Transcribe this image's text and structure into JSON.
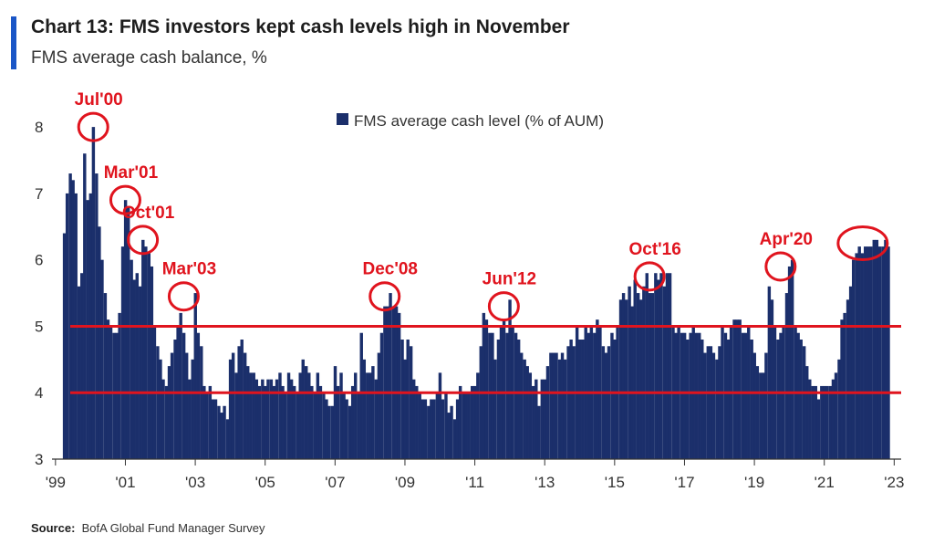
{
  "header": {
    "title": "Chart 13: FMS investors kept cash levels high in November",
    "subtitle": "FMS average cash balance, %"
  },
  "source": {
    "label": "Source:",
    "text": "BofA Global Fund Manager Survey"
  },
  "colors": {
    "bar": "#1b2f6b",
    "accent": "#1a56c7",
    "annotation": "#e0141e",
    "axis": "#333333"
  },
  "chart_data": {
    "type": "bar",
    "title": "",
    "xlabel": "",
    "ylabel": "",
    "legend": {
      "position": "top-center",
      "entries": [
        "FMS average cash level (% of AUM)"
      ]
    },
    "series": [
      {
        "name": "FMS average cash level (% of AUM)",
        "color": "#1b2f6b",
        "x": [
          1999.25,
          1999.33,
          1999.42,
          1999.5,
          1999.58,
          1999.67,
          1999.75,
          1999.83,
          1999.92,
          2000.0,
          2000.08,
          2000.17,
          2000.25,
          2000.33,
          2000.42,
          2000.5,
          2000.58,
          2000.67,
          2000.75,
          2000.83,
          2000.92,
          2001.0,
          2001.08,
          2001.17,
          2001.25,
          2001.33,
          2001.42,
          2001.5,
          2001.58,
          2001.67,
          2001.75,
          2001.83,
          2001.92,
          2002.0,
          2002.08,
          2002.17,
          2002.25,
          2002.33,
          2002.42,
          2002.5,
          2002.58,
          2002.67,
          2002.75,
          2002.83,
          2002.92,
          2003.0,
          2003.08,
          2003.17,
          2003.25,
          2003.33,
          2003.42,
          2003.5,
          2003.58,
          2003.67,
          2003.75,
          2003.83,
          2003.92,
          2004.0,
          2004.08,
          2004.17,
          2004.25,
          2004.33,
          2004.42,
          2004.5,
          2004.58,
          2004.67,
          2004.75,
          2004.83,
          2004.92,
          2005.0,
          2005.08,
          2005.17,
          2005.25,
          2005.33,
          2005.42,
          2005.5,
          2005.58,
          2005.67,
          2005.75,
          2005.83,
          2005.92,
          2006.0,
          2006.08,
          2006.17,
          2006.25,
          2006.33,
          2006.42,
          2006.5,
          2006.58,
          2006.67,
          2006.75,
          2006.83,
          2006.92,
          2007.0,
          2007.08,
          2007.17,
          2007.25,
          2007.33,
          2007.42,
          2007.5,
          2007.58,
          2007.67,
          2007.75,
          2007.83,
          2007.92,
          2008.0,
          2008.08,
          2008.17,
          2008.25,
          2008.33,
          2008.42,
          2008.5,
          2008.58,
          2008.67,
          2008.75,
          2008.83,
          2008.92,
          2009.0,
          2009.08,
          2009.17,
          2009.25,
          2009.33,
          2009.42,
          2009.5,
          2009.58,
          2009.67,
          2009.75,
          2009.83,
          2009.92,
          2010.0,
          2010.08,
          2010.17,
          2010.25,
          2010.33,
          2010.42,
          2010.5,
          2010.58,
          2010.67,
          2010.75,
          2010.83,
          2010.92,
          2011.0,
          2011.08,
          2011.17,
          2011.25,
          2011.33,
          2011.42,
          2011.5,
          2011.58,
          2011.67,
          2011.75,
          2011.83,
          2011.92,
          2012.0,
          2012.08,
          2012.17,
          2012.25,
          2012.33,
          2012.42,
          2012.5,
          2012.58,
          2012.67,
          2012.75,
          2012.83,
          2012.92,
          2013.0,
          2013.08,
          2013.17,
          2013.25,
          2013.33,
          2013.42,
          2013.5,
          2013.58,
          2013.67,
          2013.75,
          2013.83,
          2013.92,
          2014.0,
          2014.08,
          2014.17,
          2014.25,
          2014.33,
          2014.42,
          2014.5,
          2014.58,
          2014.67,
          2014.75,
          2014.83,
          2014.92,
          2015.0,
          2015.08,
          2015.17,
          2015.25,
          2015.33,
          2015.42,
          2015.5,
          2015.58,
          2015.67,
          2015.75,
          2015.83,
          2015.92,
          2016.0,
          2016.08,
          2016.17,
          2016.25,
          2016.33,
          2016.42,
          2016.5,
          2016.58,
          2016.67,
          2016.75,
          2016.83,
          2016.92,
          2017.0,
          2017.08,
          2017.17,
          2017.25,
          2017.33,
          2017.42,
          2017.5,
          2017.58,
          2017.67,
          2017.75,
          2017.83,
          2017.92,
          2018.0,
          2018.08,
          2018.17,
          2018.25,
          2018.33,
          2018.42,
          2018.5,
          2018.58,
          2018.67,
          2018.75,
          2018.83,
          2018.92,
          2019.0,
          2019.08,
          2019.17,
          2019.25,
          2019.33,
          2019.42,
          2019.5,
          2019.58,
          2019.67,
          2019.75,
          2019.83,
          2019.92,
          2020.0,
          2020.08,
          2020.17,
          2020.25,
          2020.33,
          2020.42,
          2020.5,
          2020.58,
          2020.67,
          2020.75,
          2020.83,
          2020.92,
          2021.0,
          2021.08,
          2021.17,
          2021.25,
          2021.33,
          2021.42,
          2021.5,
          2021.58,
          2021.67,
          2021.75,
          2021.83,
          2021.92,
          2022.0,
          2022.08,
          2022.17,
          2022.25,
          2022.33,
          2022.42,
          2022.5,
          2022.58,
          2022.67,
          2022.75,
          2022.83
        ],
        "values": [
          6.4,
          7.0,
          7.3,
          7.2,
          7.0,
          5.6,
          5.8,
          7.6,
          6.9,
          7.0,
          8.0,
          7.3,
          6.5,
          6.0,
          5.5,
          5.1,
          5.0,
          4.9,
          4.9,
          5.2,
          6.2,
          6.9,
          6.8,
          6.0,
          5.7,
          5.8,
          5.6,
          6.3,
          6.2,
          6.1,
          5.9,
          5.0,
          4.7,
          4.5,
          4.2,
          4.1,
          4.4,
          4.6,
          4.8,
          5.0,
          5.2,
          4.9,
          4.6,
          4.2,
          4.5,
          5.5,
          4.9,
          4.7,
          4.1,
          4.0,
          4.1,
          3.9,
          3.9,
          3.8,
          3.7,
          3.8,
          3.6,
          4.5,
          4.6,
          4.3,
          4.7,
          4.8,
          4.6,
          4.4,
          4.3,
          4.3,
          4.2,
          4.1,
          4.2,
          4.1,
          4.2,
          4.2,
          4.1,
          4.2,
          4.3,
          4.1,
          4.0,
          4.3,
          4.2,
          4.1,
          4.0,
          4.3,
          4.5,
          4.4,
          4.3,
          4.1,
          4.0,
          4.3,
          4.1,
          4.0,
          3.9,
          3.8,
          3.8,
          4.4,
          4.1,
          4.3,
          4.0,
          3.9,
          3.8,
          4.1,
          4.3,
          4.0,
          4.9,
          4.5,
          4.3,
          4.3,
          4.4,
          4.2,
          4.6,
          4.9,
          5.3,
          5.3,
          5.5,
          5.3,
          5.3,
          5.2,
          4.8,
          4.5,
          4.8,
          4.7,
          4.2,
          4.1,
          4.0,
          3.9,
          3.9,
          3.8,
          3.9,
          3.9,
          4.0,
          4.3,
          3.9,
          4.0,
          3.7,
          3.8,
          3.6,
          3.9,
          4.1,
          4.0,
          4.0,
          4.0,
          4.1,
          4.1,
          4.3,
          4.7,
          5.2,
          5.1,
          4.9,
          4.9,
          4.5,
          4.8,
          5.0,
          5.1,
          4.9,
          5.4,
          5.0,
          4.9,
          4.8,
          4.6,
          4.5,
          4.4,
          4.3,
          4.1,
          4.2,
          3.8,
          4.2,
          4.2,
          4.4,
          4.6,
          4.6,
          4.6,
          4.5,
          4.6,
          4.5,
          4.7,
          4.8,
          4.7,
          5.0,
          4.8,
          4.8,
          5.0,
          4.9,
          5.0,
          4.9,
          5.1,
          5.0,
          4.7,
          4.6,
          4.7,
          4.9,
          4.8,
          5.0,
          5.4,
          5.5,
          5.4,
          5.6,
          5.3,
          5.7,
          5.5,
          5.4,
          5.6,
          5.8,
          5.5,
          5.5,
          5.8,
          5.7,
          5.8,
          5.6,
          5.8,
          5.8,
          5.0,
          4.9,
          5.0,
          4.9,
          4.9,
          4.8,
          4.9,
          5.0,
          4.9,
          4.9,
          4.8,
          4.6,
          4.7,
          4.7,
          4.6,
          4.5,
          4.7,
          5.0,
          4.9,
          4.8,
          5.0,
          5.1,
          5.1,
          5.1,
          4.9,
          4.9,
          5.0,
          4.8,
          4.6,
          4.4,
          4.3,
          4.3,
          4.6,
          5.6,
          5.4,
          5.0,
          4.8,
          4.9,
          5.0,
          5.5,
          5.9,
          6.0,
          5.0,
          4.9,
          4.8,
          4.7,
          4.4,
          4.2,
          4.1,
          4.1,
          3.9,
          4.1,
          4.1,
          4.1,
          4.1,
          4.2,
          4.3,
          4.5,
          5.1,
          5.2,
          5.4,
          5.6,
          6.0,
          6.1,
          6.2,
          6.1,
          6.2,
          6.2,
          6.2,
          6.3,
          6.3,
          6.2,
          6.2,
          6.3,
          6.2
        ]
      }
    ],
    "xtick_labels": [
      "'99",
      "'01",
      "'03",
      "'05",
      "'07",
      "'09",
      "'11",
      "'13",
      "'15",
      "'17",
      "'19",
      "'21",
      "'23"
    ],
    "xticks": [
      1999,
      2001,
      2003,
      2005,
      2007,
      2009,
      2011,
      2013,
      2015,
      2017,
      2019,
      2021,
      2023
    ],
    "xlim": [
      1998.9,
      2023.2
    ],
    "yticks": [
      3,
      4,
      5,
      6,
      7,
      8
    ],
    "ylim": [
      3,
      8.4
    ],
    "grid": false,
    "reference_lines": [
      5.0,
      4.0
    ],
    "annotations": [
      {
        "label": "Jul'00",
        "x": 2000.08,
        "y": 8.0
      },
      {
        "label": "Mar'01",
        "x": 2001.0,
        "y": 6.9
      },
      {
        "label": "Oct'01",
        "x": 2001.5,
        "y": 6.3
      },
      {
        "label": "Mar'03",
        "x": 2002.67,
        "y": 5.45
      },
      {
        "label": "Dec'08",
        "x": 2008.42,
        "y": 5.45
      },
      {
        "label": "Jun'12",
        "x": 2011.83,
        "y": 5.3
      },
      {
        "label": "Oct'16",
        "x": 2016.0,
        "y": 5.75
      },
      {
        "label": "Apr'20",
        "x": 2019.75,
        "y": 5.9
      },
      {
        "label": "",
        "x": 2022.1,
        "y": 6.25
      }
    ]
  }
}
